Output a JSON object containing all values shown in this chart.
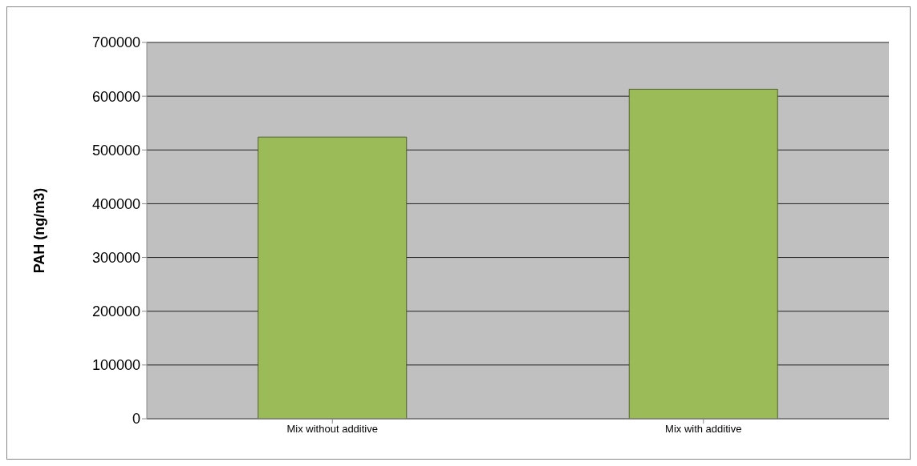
{
  "chart_data": {
    "type": "bar",
    "ylabel": "PAH  (ng/m3)",
    "categories": [
      "Mix without additive",
      "Mix with additive"
    ],
    "values": [
      524000,
      613000
    ],
    "color": "#9bbb59",
    "ylim": [
      0,
      700000
    ],
    "yticks": [
      0,
      100000,
      200000,
      300000,
      400000,
      500000,
      600000,
      700000
    ],
    "grid": "y",
    "legend": false
  }
}
